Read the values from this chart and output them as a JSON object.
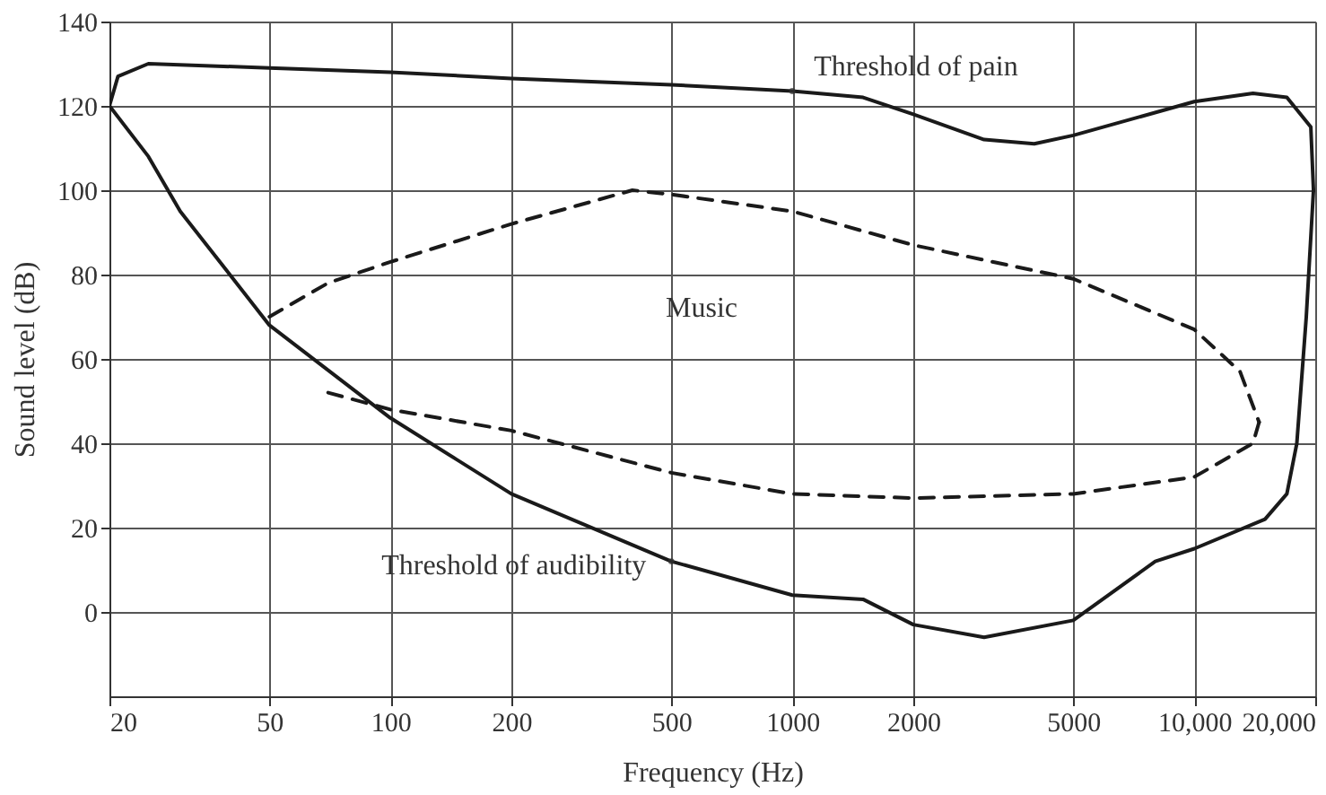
{
  "chart_data": {
    "type": "line",
    "xlabel": "Frequency (Hz)",
    "ylabel": "Sound level (dB)",
    "log": "x",
    "xlim": [
      20,
      20000
    ],
    "ylim": [
      -20,
      140
    ],
    "xticks": [
      20,
      50,
      100,
      200,
      500,
      1000,
      2000,
      5000,
      {
        "value": 10000,
        "label": "10,000"
      },
      {
        "value": 20000,
        "label": "20,000"
      }
    ],
    "yticks": [
      0,
      20,
      40,
      60,
      80,
      100,
      120,
      140
    ],
    "grid": true,
    "marker": "none",
    "series": [
      {
        "name": "Threshold of pain",
        "color": "#1a1a1a",
        "line_style": "solid",
        "x": [
          20,
          21,
          25,
          50,
          100,
          200,
          500,
          1000,
          1500,
          2000,
          3000,
          4000,
          5000,
          10000,
          14000,
          17000,
          19500,
          19800
        ],
        "values": [
          120,
          127,
          130,
          129,
          128,
          126.5,
          125,
          123.5,
          122,
          118,
          112,
          111,
          113,
          121,
          123,
          122,
          115,
          100
        ]
      },
      {
        "name": "Threshold of audibility",
        "color": "#1a1a1a",
        "line_style": "solid",
        "x": [
          20,
          25,
          30,
          50,
          100,
          200,
          500,
          1000,
          1500,
          2000,
          3000,
          5000,
          8000,
          10000,
          15000,
          17000,
          18000,
          19000,
          19800
        ],
        "values": [
          120,
          108,
          95,
          68,
          46,
          28,
          12,
          4,
          3,
          -3,
          -6,
          -2,
          12,
          15,
          22,
          28,
          40,
          70,
          100
        ]
      },
      {
        "color": "#1a1a1a",
        "line_style": "dashed",
        "x": [
          50,
          70,
          100,
          200,
          400,
          500,
          1000,
          2000,
          5000,
          10000,
          13000,
          14500
        ],
        "values": [
          70,
          78,
          83,
          92,
          100,
          99,
          95,
          87,
          79,
          67,
          57,
          45
        ]
      },
      {
        "color": "#1a1a1a",
        "line_style": "dashed",
        "x": [
          70,
          100,
          200,
          500,
          1000,
          2000,
          5000,
          10000,
          14000,
          14500
        ],
        "values": [
          52,
          48,
          43,
          33,
          28,
          27,
          28,
          32,
          40,
          45
        ]
      }
    ],
    "annotations": [
      "Music"
    ]
  }
}
